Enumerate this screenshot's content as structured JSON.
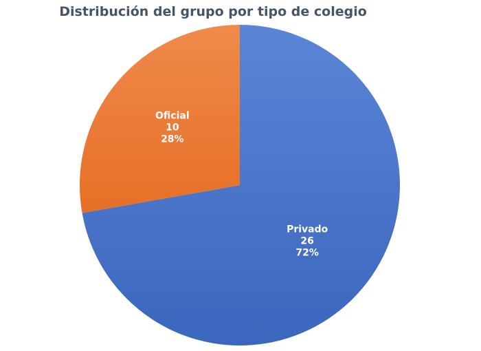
{
  "chart_data": {
    "type": "pie",
    "title": "Distribución del grupo por tipo de colegio",
    "slices": [
      {
        "label": "Privado",
        "value": 26,
        "percent": "72%",
        "color": "#4472c4"
      },
      {
        "label": "Oficial",
        "value": 10,
        "percent": "28%",
        "color": "#ed7d31"
      }
    ]
  }
}
